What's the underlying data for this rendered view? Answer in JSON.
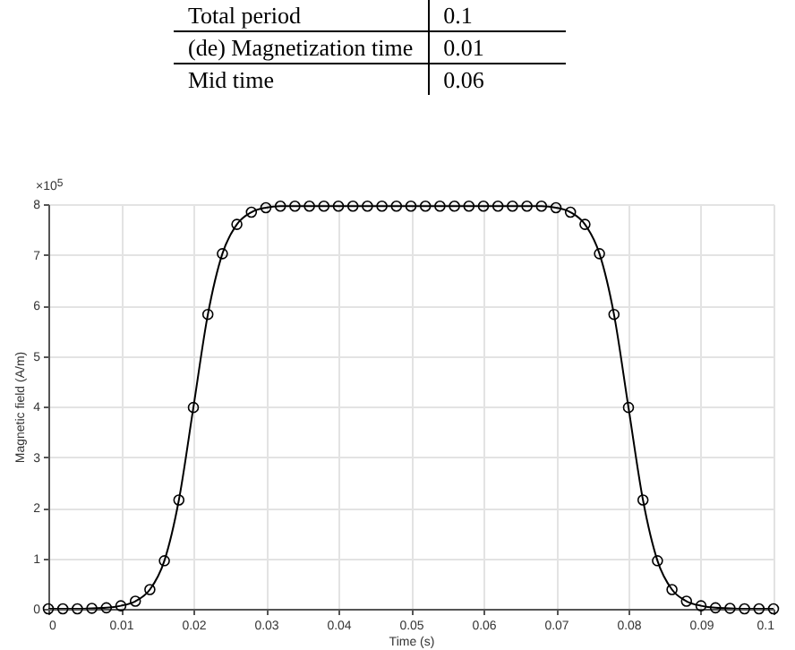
{
  "chart_data": {
    "type": "line",
    "xlabel": "Time (s)",
    "ylabel": "Magnetic field (A/m)",
    "annotations": [
      "Total period",
      "0.1",
      "(de) Magnetization time",
      "0.01",
      "Mid time",
      "0.06",
      "×10$^{5}$"
    ],
    "x": [
      0,
      0.002,
      0.004,
      0.006,
      0.008,
      0.01,
      0.012,
      0.014,
      0.016,
      0.018,
      0.02,
      0.022,
      0.024,
      0.026,
      0.028,
      0.03,
      0.032,
      0.034,
      0.036,
      0.038,
      0.04,
      0.042,
      0.044,
      0.046,
      0.048,
      0.05,
      0.052,
      0.054,
      0.056,
      0.058,
      0.06,
      0.062,
      0.064,
      0.066,
      0.068,
      0.07,
      0.072,
      0.074,
      0.076,
      0.078,
      0.08,
      0.082,
      0.084,
      0.086,
      0.088,
      0.09,
      0.092,
      0.094,
      0.096,
      0.098,
      0.1
    ],
    "series": [
      {
        "color": "#000000",
        "values": [
          0,
          0,
          0,
          0.01,
          0.02,
          0.06,
          0.15,
          0.38,
          0.95,
          2.15,
          3.98,
          5.82,
          7.02,
          7.6,
          7.84,
          7.93,
          7.96,
          7.96,
          7.96,
          7.96,
          7.96,
          7.96,
          7.96,
          7.96,
          7.96,
          7.96,
          7.96,
          7.96,
          7.96,
          7.96,
          7.96,
          7.96,
          7.96,
          7.96,
          7.96,
          7.93,
          7.84,
          7.6,
          7.02,
          5.82,
          3.98,
          2.15,
          0.95,
          0.38,
          0.15,
          0.06,
          0.02,
          0.01,
          0,
          0,
          0
        ]
      }
    ],
    "xlim": [
      0,
      0.1
    ],
    "xticks": [
      0,
      0.01,
      0.02,
      0.03,
      0.04,
      0.05,
      0.06,
      0.07,
      0.08,
      0.09,
      0.1
    ],
    "ylim": [
      0,
      8
    ],
    "yticks": [
      0,
      1,
      2,
      3,
      4,
      5,
      6,
      7,
      8
    ],
    "grid": true,
    "marker": "circle",
    "line_style": "solid"
  }
}
